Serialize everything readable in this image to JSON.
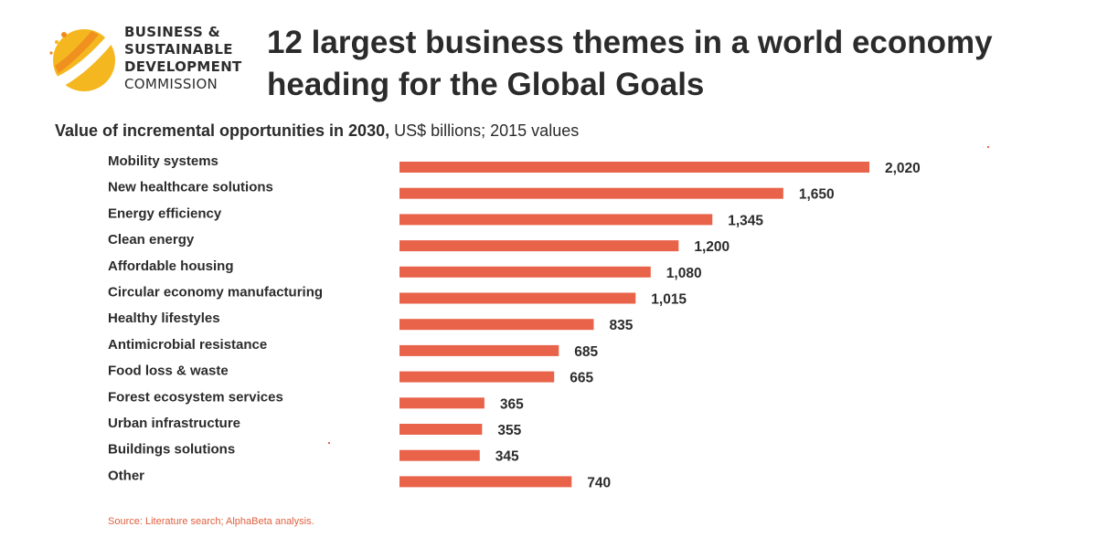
{
  "header": {
    "logo_lines": [
      "Business &",
      "Sustainable",
      "Development",
      "Commission"
    ],
    "title": "12 largest business themes in a world economy heading for the Global Goals"
  },
  "subtitle": {
    "bold": "Value of incremental opportunities in 2030,",
    "normal": " US$ billions; 2015 values"
  },
  "colors": {
    "bar": "#e8634a",
    "logo_yellow": "#f5b71f",
    "logo_orange": "#ef8a1e"
  },
  "chart_data": {
    "type": "bar",
    "orientation": "horizontal",
    "categories": [
      "Mobility systems",
      "New healthcare solutions",
      "Energy efficiency",
      "Clean energy",
      "Affordable housing",
      "Circular economy manufacturing",
      "Healthy lifestyles",
      "Antimicrobial resistance",
      "Food loss & waste",
      "Forest ecosystem services",
      "Urban infrastructure",
      "Buildings solutions",
      "Other"
    ],
    "values": [
      2020,
      1650,
      1345,
      1200,
      1080,
      1015,
      835,
      685,
      665,
      365,
      355,
      345,
      740
    ],
    "value_labels": [
      "2,020",
      "1,650",
      "1,345",
      "1,200",
      "1,080",
      "1,015",
      "835",
      "685",
      "665",
      "365",
      "355",
      "345",
      "740"
    ],
    "xlim": [
      0,
      2020
    ],
    "grid": false,
    "legend": "none"
  },
  "source": "Source: Literature search; AlphaBeta analysis."
}
